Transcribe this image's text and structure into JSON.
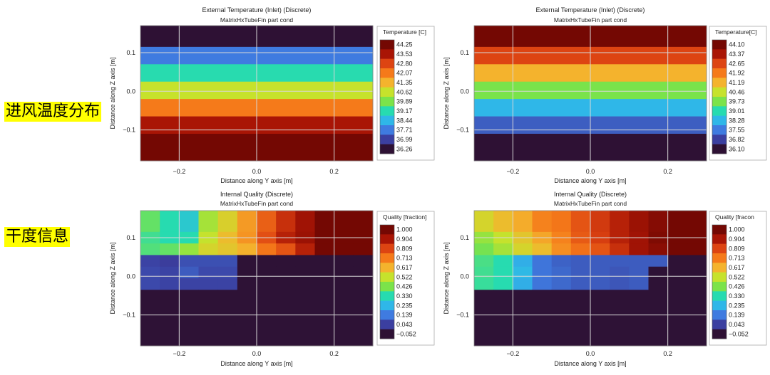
{
  "side_labels": {
    "inlet": "进风温度分布",
    "quality": "干度信息"
  },
  "chart_data": [
    {
      "type": "heatmap",
      "title": "External Temperature (Inlet) (Discrete)",
      "subtitle": "MatrixHxTubeFin part cond",
      "xlabel": "Distance along Y axis [m]",
      "ylabel": "Distance along Z axis [m]",
      "xlim": [
        -0.3,
        0.3
      ],
      "ylim": [
        -0.18,
        0.17
      ],
      "xticks": [
        -0.2,
        0.0,
        0.2
      ],
      "xtick_labels": [
        "−0.2",
        "0.0",
        "0.2"
      ],
      "yticks": [
        0.1,
        0.0,
        -0.1
      ],
      "ytick_labels": [
        "0.1",
        "0.0",
        "−0.1"
      ],
      "colorbar_title": "Temperature [C]",
      "colorbar_ticks": [
        "44.25",
        "43.53",
        "42.80",
        "42.07",
        "41.35",
        "40.62",
        "39.89",
        "39.17",
        "38.44",
        "37.71",
        "36.99",
        "36.26"
      ],
      "color_min": 36.26,
      "color_max": 44.25,
      "x_edges": [
        -0.3,
        0.3
      ],
      "y_edges": [
        0.17,
        0.115,
        0.07,
        0.025,
        -0.02,
        -0.065,
        -0.11,
        -0.18
      ],
      "values": [
        [
          36.26
        ],
        [
          37.71
        ],
        [
          39.17
        ],
        [
          40.62
        ],
        [
          42.07
        ],
        [
          43.53
        ],
        [
          44.25
        ]
      ]
    },
    {
      "type": "heatmap",
      "title": "External Temperature (Inlet) (Discrete)",
      "subtitle": "MatrixHxTubeFin part cond",
      "xlabel": "Distance along Y axis [m]",
      "ylabel": "Distance along Z axis [m]",
      "xlim": [
        -0.3,
        0.3
      ],
      "ylim": [
        -0.18,
        0.17
      ],
      "xticks": [
        -0.2,
        0.0,
        0.2
      ],
      "xtick_labels": [
        "−0.2",
        "0.0",
        "0.2"
      ],
      "yticks": [
        0.1,
        0.0,
        -0.1
      ],
      "ytick_labels": [
        "0.1",
        "0.0",
        "−0.1"
      ],
      "colorbar_title": "Temperature[C]",
      "colorbar_ticks": [
        "44.10",
        "43.37",
        "42.65",
        "41.92",
        "41.19",
        "40.46",
        "39.73",
        "39.01",
        "38.28",
        "37.55",
        "36.82",
        "36.10"
      ],
      "color_min": 36.1,
      "color_max": 44.1,
      "x_edges": [
        -0.3,
        0.3
      ],
      "y_edges": [
        0.17,
        0.115,
        0.07,
        0.025,
        -0.02,
        -0.065,
        -0.11,
        -0.18
      ],
      "values": [
        [
          44.1
        ],
        [
          42.65
        ],
        [
          41.19
        ],
        [
          39.73
        ],
        [
          38.28
        ],
        [
          37.2
        ],
        [
          36.1
        ]
      ]
    },
    {
      "type": "heatmap",
      "title": "Internal Quality (Discrete)",
      "subtitle": "MatrixHxTubeFin part cond",
      "xlabel": "Distance along Y axis [m]",
      "ylabel": "Distance along Z axis [m]",
      "xlim": [
        -0.3,
        0.3
      ],
      "ylim": [
        -0.18,
        0.17
      ],
      "xticks": [
        -0.2,
        0.0,
        0.2
      ],
      "xtick_labels": [
        "−0.2",
        "0.0",
        "0.2"
      ],
      "yticks": [
        0.1,
        0.0,
        -0.1
      ],
      "ytick_labels": [
        "0.1",
        "0.0",
        "−0.1"
      ],
      "colorbar_title": "Quality [fraction]",
      "colorbar_ticks": [
        "1.000",
        "0.904",
        "0.809",
        "0.713",
        "0.617",
        "0.522",
        "0.426",
        "0.330",
        "0.235",
        "0.139",
        "0.043",
        "−0.052"
      ],
      "color_min": -0.052,
      "color_max": 1.0,
      "x_edges": [
        -0.3,
        -0.25,
        -0.2,
        -0.15,
        -0.1,
        -0.05,
        0.0,
        0.05,
        0.1,
        0.15,
        0.2,
        0.25,
        0.3
      ],
      "y_edges": [
        0.17,
        0.115,
        0.085,
        0.055,
        0.025,
        -0.005,
        -0.035,
        -0.18
      ],
      "values": [
        [
          0.4,
          0.33,
          0.28,
          0.48,
          0.56,
          0.66,
          0.76,
          0.85,
          0.92,
          1.0,
          1.0,
          1.0
        ],
        [
          0.36,
          0.33,
          0.33,
          0.52,
          0.6,
          0.67,
          0.79,
          0.88,
          0.93,
          1.0,
          1.0,
          1.0
        ],
        [
          0.38,
          0.4,
          0.46,
          0.55,
          0.58,
          0.62,
          0.72,
          0.78,
          0.88,
          1.0,
          1.0,
          1.0
        ],
        [
          0.05,
          0.04,
          0.07,
          0.07,
          0.07,
          -0.05,
          -0.05,
          -0.05,
          -0.05,
          -0.05,
          -0.05,
          -0.05
        ],
        [
          0.06,
          0.05,
          0.09,
          0.06,
          0.06,
          -0.05,
          -0.05,
          -0.05,
          -0.05,
          -0.05,
          -0.05,
          -0.05
        ],
        [
          0.06,
          0.05,
          0.05,
          0.05,
          0.05,
          -0.05,
          -0.05,
          -0.05,
          -0.05,
          -0.05,
          -0.05,
          -0.05
        ],
        [
          -0.05,
          -0.05,
          -0.05,
          -0.05,
          -0.05,
          -0.05,
          -0.05,
          -0.05,
          -0.05,
          -0.05,
          -0.05,
          -0.05
        ]
      ]
    },
    {
      "type": "heatmap",
      "title": "Internal Quality (Discrete)",
      "subtitle": "MatrixHxTubeFin part cond",
      "xlabel": "Distance along Y axis [m]",
      "ylabel": "Distance along Z axis [m]",
      "xlim": [
        -0.3,
        0.3
      ],
      "ylim": [
        -0.18,
        0.17
      ],
      "xticks": [
        -0.2,
        0.0,
        0.2
      ],
      "xtick_labels": [
        "−0.2",
        "0.0",
        "0.2"
      ],
      "yticks": [
        0.1,
        0.0,
        -0.1
      ],
      "ytick_labels": [
        "0.1",
        "0.0",
        "−0.1"
      ],
      "colorbar_title": "Quality [fracon",
      "colorbar_ticks": [
        "1.000",
        "0.904",
        "0.809",
        "0.713",
        "0.617",
        "0.522",
        "0.426",
        "0.330",
        "0.235",
        "0.139",
        "0.043",
        "−0.052"
      ],
      "color_min": -0.052,
      "color_max": 1.0,
      "x_edges": [
        -0.3,
        -0.25,
        -0.2,
        -0.15,
        -0.1,
        -0.05,
        0.0,
        0.05,
        0.1,
        0.15,
        0.2,
        0.25,
        0.3
      ],
      "y_edges": [
        0.17,
        0.115,
        0.085,
        0.055,
        0.025,
        -0.005,
        -0.035,
        -0.18
      ],
      "values": [
        [
          0.55,
          0.6,
          0.63,
          0.7,
          0.72,
          0.78,
          0.83,
          0.88,
          0.93,
          0.97,
          1.0,
          1.0
        ],
        [
          0.46,
          0.52,
          0.58,
          0.64,
          0.7,
          0.77,
          0.82,
          0.88,
          0.92,
          0.98,
          1.0,
          1.0
        ],
        [
          0.42,
          0.48,
          0.55,
          0.6,
          0.68,
          0.73,
          0.78,
          0.85,
          0.92,
          0.96,
          1.0,
          1.0
        ],
        [
          0.37,
          0.33,
          0.22,
          0.13,
          0.1,
          0.09,
          0.09,
          0.09,
          0.09,
          0.09,
          -0.05,
          -0.05
        ],
        [
          0.36,
          0.33,
          0.24,
          0.13,
          0.11,
          0.09,
          0.09,
          0.08,
          0.09,
          -0.05,
          -0.05,
          -0.05
        ],
        [
          0.35,
          0.33,
          0.22,
          0.13,
          0.11,
          0.09,
          0.09,
          0.08,
          0.09,
          -0.05,
          -0.05,
          -0.05
        ],
        [
          -0.05,
          -0.05,
          -0.05,
          -0.05,
          -0.05,
          -0.05,
          -0.05,
          -0.05,
          -0.05,
          -0.05,
          -0.05,
          -0.05
        ]
      ]
    }
  ]
}
